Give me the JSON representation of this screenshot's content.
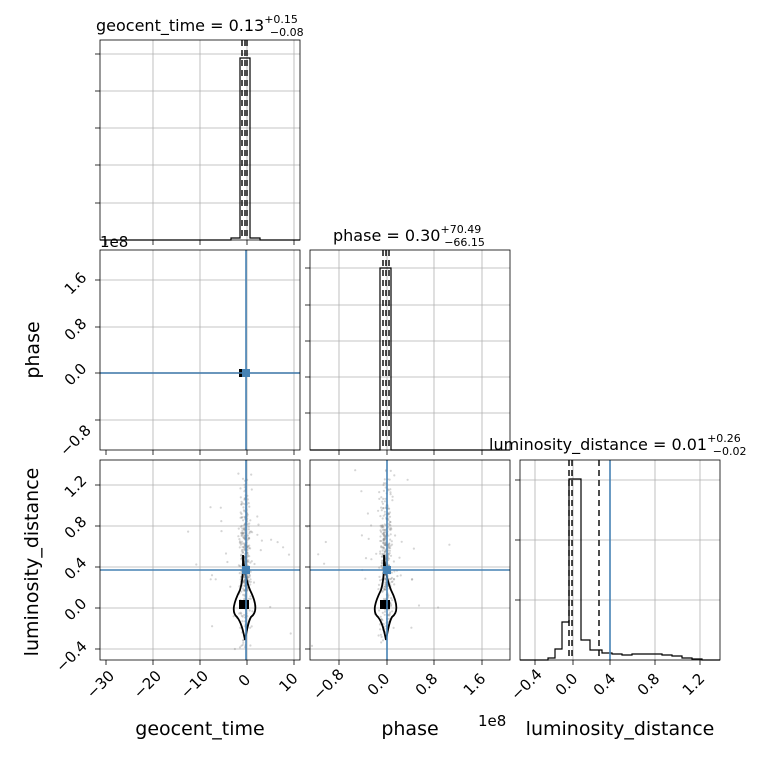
{
  "chart_data": [
    {
      "type": "histogram",
      "panel": "geocent_time (1D marginal)",
      "title": {
        "label": "geocent_time",
        "median": "0.13",
        "plus": "+0.15",
        "minus": "−0.08"
      },
      "x": [
        -1,
        -0.5,
        0,
        0.5,
        1,
        1.5,
        2,
        3
      ],
      "density": [
        0.01,
        0.06,
        0.9,
        1.0,
        0.06,
        0.01,
        0.005,
        0
      ],
      "quantiles": [
        0.05,
        0.13,
        0.28
      ],
      "xlim": [
        -31,
        11
      ],
      "xticks": [
        -30,
        -20,
        -10,
        0,
        10
      ],
      "grid": true
    },
    {
      "type": "contour",
      "panel": "phase vs geocent_time",
      "xlabel": "geocent_time",
      "ylabel": "phase",
      "yticks": [
        "−0.8",
        "0.0",
        "0.8",
        "1.6"
      ],
      "y_offset_label": "1e8",
      "xlim": [
        -31,
        11
      ],
      "ylim": [
        -1.6,
        2.1
      ],
      "truth": {
        "x": 0.3,
        "y": 0.0
      },
      "grid": true
    },
    {
      "type": "histogram",
      "panel": "phase (1D marginal)",
      "title": {
        "label": "phase",
        "median": "0.30",
        "plus": "+70.49",
        "minus": "−66.15"
      },
      "xlim": [
        -1.6,
        2.1
      ],
      "spike_at": 0.0,
      "quantiles": [
        -0.04,
        0.0,
        0.04
      ],
      "grid": true
    },
    {
      "type": "scatter",
      "panel": "luminosity_distance vs geocent_time",
      "xlabel": "geocent_time",
      "ylabel": "luminosity_distance",
      "xticks": [
        "−30",
        "−20",
        "−10",
        "0",
        "10"
      ],
      "yticks": [
        "−0.4",
        "0.0",
        "0.4",
        "0.8",
        "1.2"
      ],
      "xlim": [
        -31,
        11
      ],
      "ylim": [
        -0.5,
        1.5
      ],
      "truth": {
        "x": 0.3,
        "y": 0.36
      },
      "grid": true
    },
    {
      "type": "scatter",
      "panel": "luminosity_distance vs phase",
      "xlabel": "phase",
      "xticks": [
        "−0.8",
        "0.0",
        "0.8",
        "1.6"
      ],
      "x_offset_label": "1e8",
      "xlim": [
        -1.6,
        2.1
      ],
      "ylim": [
        -0.5,
        1.5
      ],
      "truth": {
        "x": 0.0,
        "y": 0.36
      },
      "grid": true
    },
    {
      "type": "histogram",
      "panel": "luminosity_distance (1D marginal)",
      "title": {
        "label": "luminosity_distance",
        "median": "0.01",
        "plus": "+0.26",
        "minus": "−0.02"
      },
      "xlabel": "luminosity_distance",
      "xticks": [
        "−0.4",
        "0.0",
        "0.4",
        "0.8",
        "1.2"
      ],
      "x": [
        -0.3,
        -0.2,
        -0.1,
        -0.05,
        0.0,
        0.05,
        0.1,
        0.2,
        0.3,
        0.4,
        0.5,
        0.6,
        0.7,
        0.8,
        0.9,
        1.0,
        1.1,
        1.2
      ],
      "density": [
        0.01,
        0.08,
        0.3,
        0.96,
        0.96,
        0.18,
        0.06,
        0.05,
        0.04,
        0.035,
        0.03,
        0.035,
        0.035,
        0.03,
        0.025,
        0.015,
        0.01,
        0.005
      ],
      "quantiles": [
        -0.01,
        0.01,
        0.27
      ],
      "truth": 0.36,
      "xlim": [
        -0.5,
        1.4
      ],
      "grid": true
    }
  ],
  "colors": {
    "truth": "#4682b4",
    "hist": "#000000",
    "grid": "#b0b0b0",
    "scatter": "#888888"
  }
}
